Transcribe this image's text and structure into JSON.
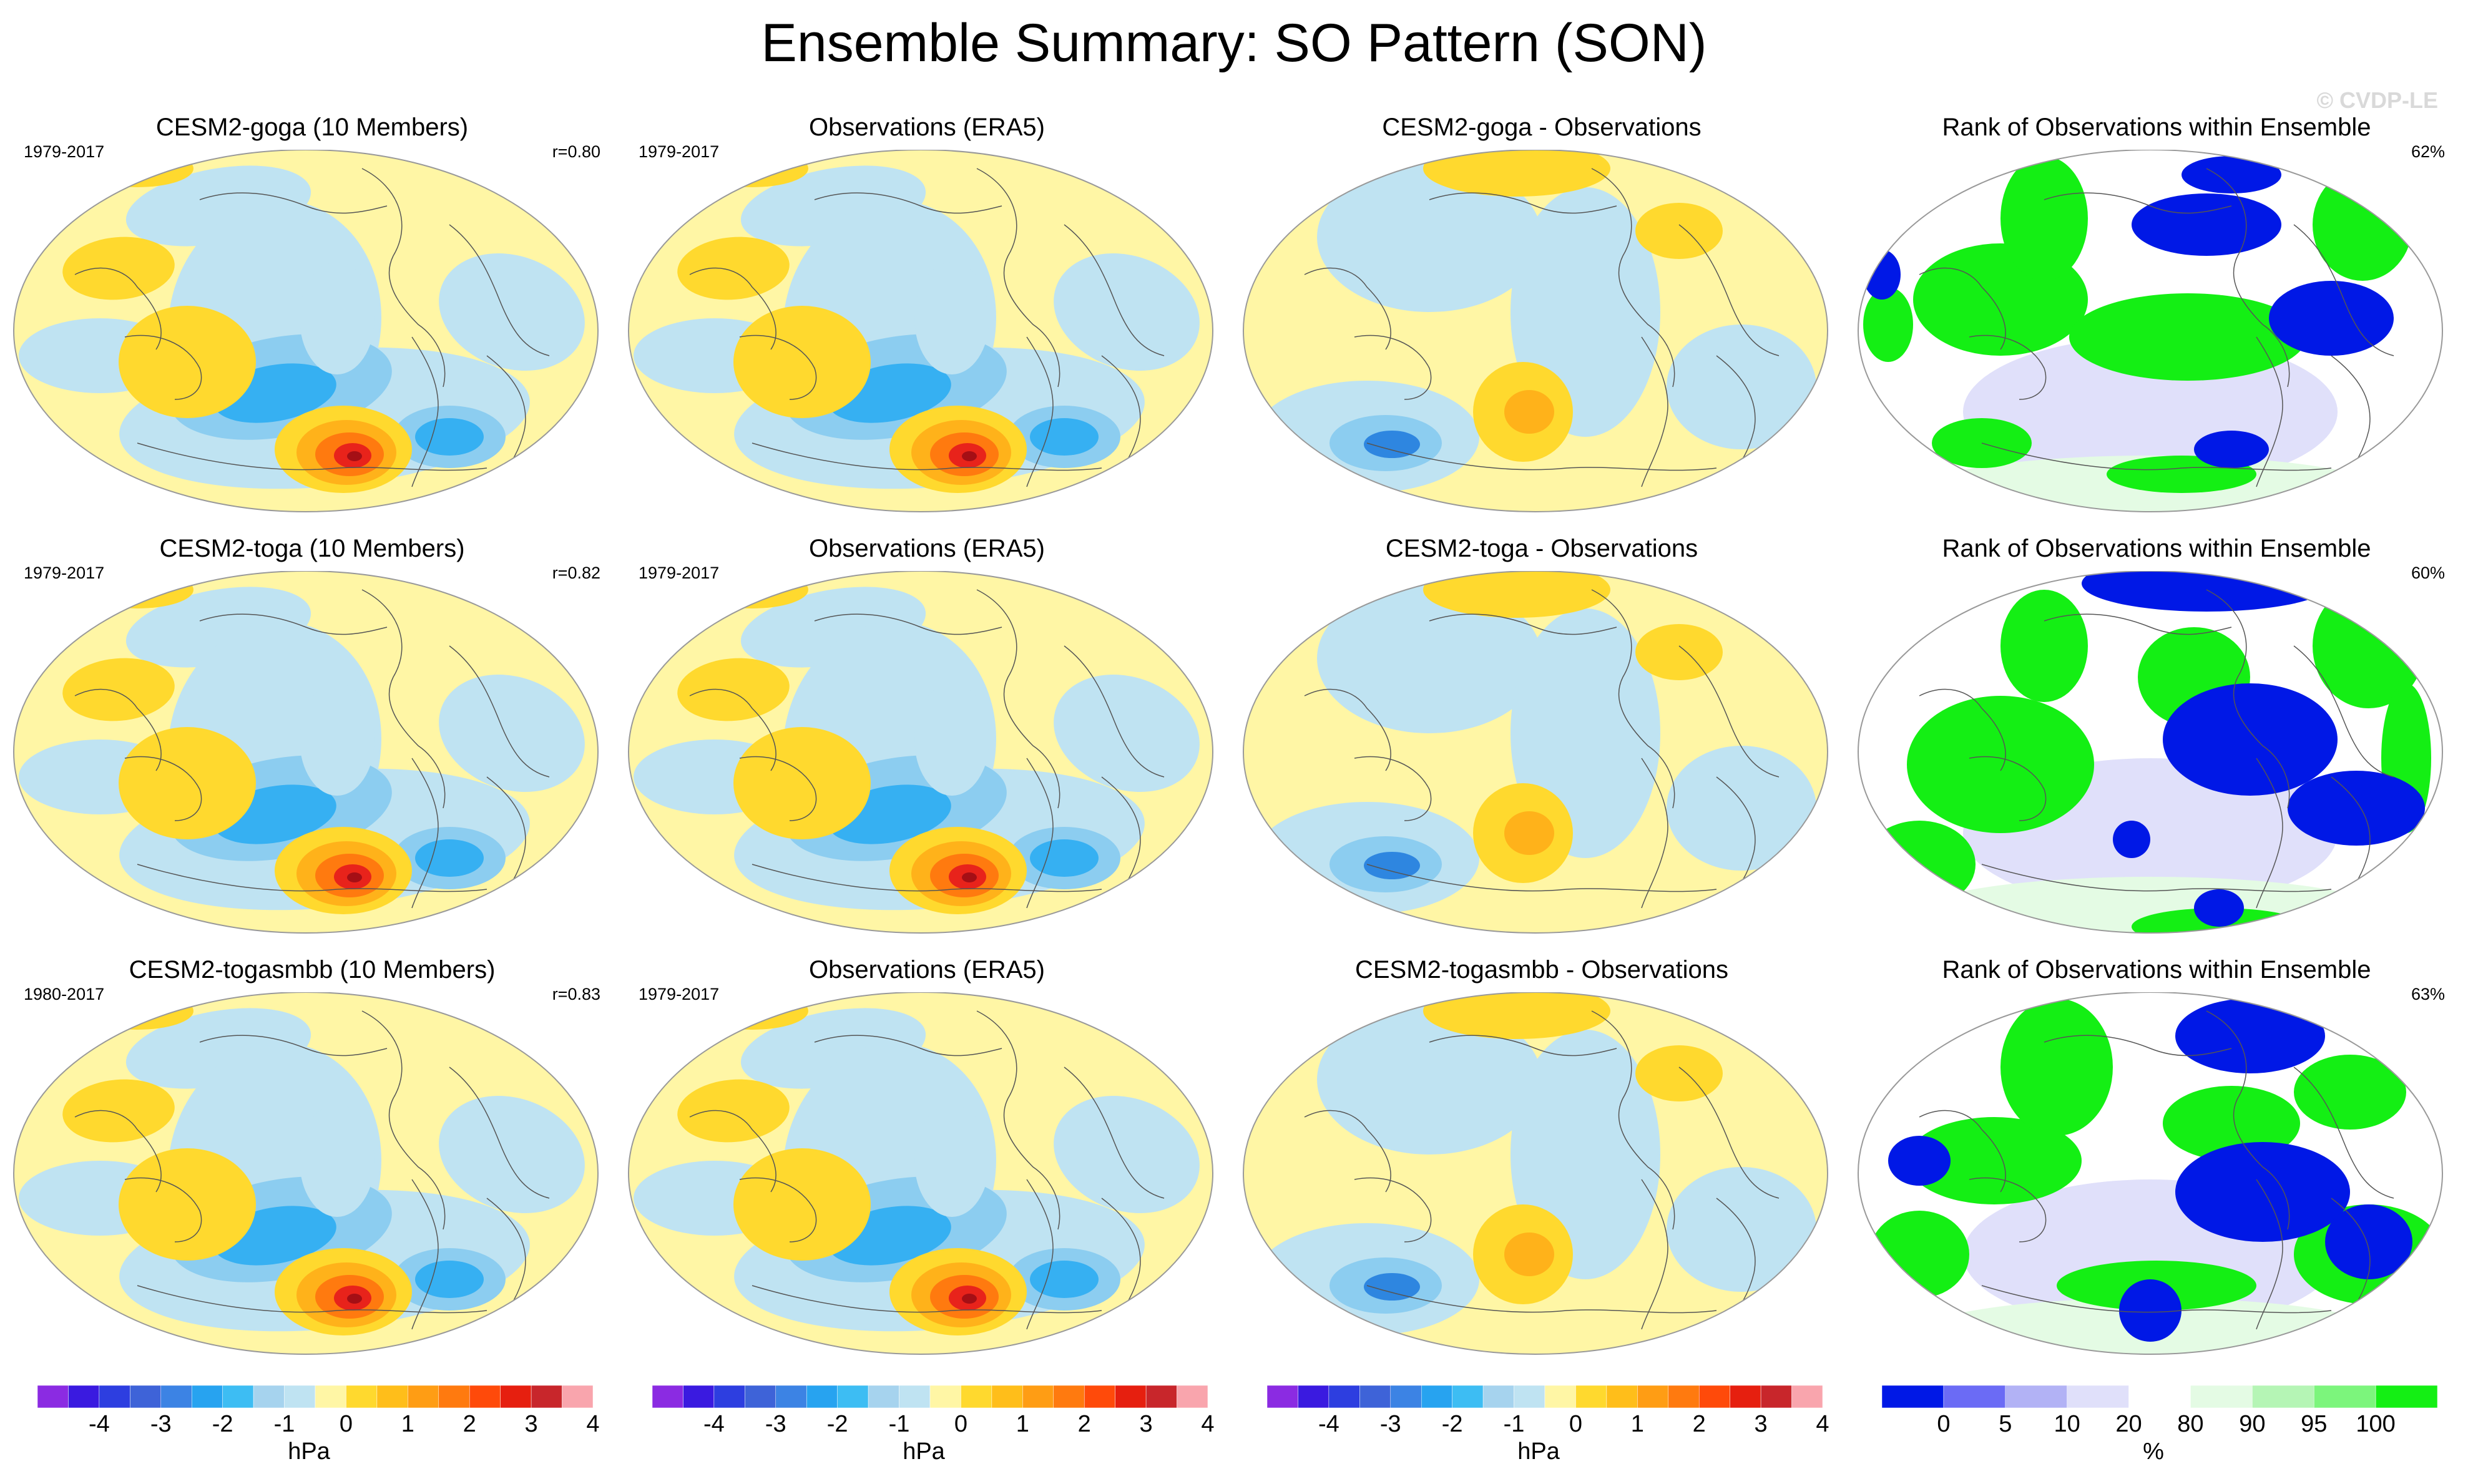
{
  "title": "Ensemble Summary: SO Pattern (SON)",
  "watermark": "© CVDP-LE",
  "rows": [
    {
      "model": {
        "title": "CESM2-goga (10 Members)",
        "years": "1979-2017",
        "corr": "r=0.80"
      },
      "obs": {
        "title": "Observations (ERA5)",
        "years": "1979-2017"
      },
      "diff": {
        "title": "CESM2-goga - Observations"
      },
      "rank": {
        "title": "Rank of Observations within Ensemble",
        "pct": "62%"
      }
    },
    {
      "model": {
        "title": "CESM2-toga (10 Members)",
        "years": "1979-2017",
        "corr": "r=0.82"
      },
      "obs": {
        "title": "Observations (ERA5)",
        "years": "1979-2017"
      },
      "diff": {
        "title": "CESM2-toga - Observations"
      },
      "rank": {
        "title": "Rank of Observations within Ensemble",
        "pct": "60%"
      }
    },
    {
      "model": {
        "title": "CESM2-togasmbb (10 Members)",
        "years": "1980-2017",
        "corr": "r=0.83"
      },
      "obs": {
        "title": "Observations (ERA5)",
        "years": "1979-2017"
      },
      "diff": {
        "title": "CESM2-togasmbb - Observations"
      },
      "rank": {
        "title": "Rank of Observations within Ensemble",
        "pct": "63%"
      }
    }
  ],
  "colorbar_hpa": {
    "unit": "hPa",
    "tick_labels": [
      "-4",
      "-3",
      "-2",
      "-1",
      "0",
      "1",
      "2",
      "3",
      "4"
    ],
    "colors": [
      "#8b2be2",
      "#3a1ae0",
      "#2d3ee0",
      "#3e63d8",
      "#3c83e4",
      "#27a3f0",
      "#3dbdf3",
      "#a6d3ee",
      "#bfe3f2",
      "#fff6a5",
      "#ffd92e",
      "#ffbe1a",
      "#ff9d14",
      "#ff7a0f",
      "#ff4a0a",
      "#e61f0f",
      "#c8262b",
      "#f9a5ad"
    ]
  },
  "colorbar_rank": {
    "unit": "%",
    "tick_labels": [
      "0",
      "5",
      "10",
      "20",
      "80",
      "90",
      "95",
      "100"
    ],
    "colors": [
      "#0018e6",
      "#6b6bf5",
      "#b2b2f5",
      "#e0e0fa",
      "#ffffff",
      "#e4fbe4",
      "#b5f5b5",
      "#7cf57c",
      "#14ef14"
    ]
  },
  "palette": {
    "yellow": "#fff6a5",
    "lightblue": "#bfe3f2",
    "blue2": "#8ccdf0",
    "blue3": "#36b0f2",
    "blue4": "#2e86e0",
    "orange1": "#ffd92e",
    "orange2": "#ffb21a",
    "orange3": "#ff7a0f",
    "red": "#e8231b",
    "darkred": "#a50f15",
    "rank_green": "#14ef14",
    "rank_blue": "#0018e6",
    "rank_lav": "#e0e0fa",
    "rank_mint": "#e4fbe4"
  }
}
